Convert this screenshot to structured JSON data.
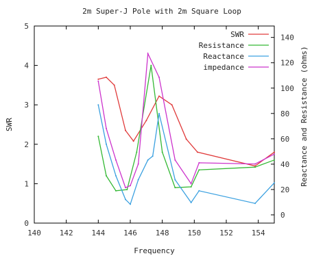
{
  "chart_data": {
    "type": "line",
    "title": "2m Super-J Pole with 2m Square Loop",
    "xlabel": "Frequency",
    "ylabel": "SWR",
    "y2label": "Reactance and Resistance (ohms)",
    "xlim": [
      140,
      155
    ],
    "ylim": [
      0,
      5
    ],
    "y2lim": [
      -6.5,
      149
    ],
    "xticks": [
      "140",
      "142",
      "144",
      "146",
      "148",
      "150",
      "152",
      "154"
    ],
    "yticks": [
      "0",
      "1",
      "2",
      "3",
      "4",
      "5"
    ],
    "y2ticks": [
      "0",
      "20",
      "40",
      "60",
      "80",
      "100",
      "120",
      "140"
    ],
    "legend_position": "top-right",
    "grid": false,
    "series": [
      {
        "name": "SWR",
        "axis": "left",
        "color": "#e03a3a",
        "x": [
          144.0,
          144.5,
          145.0,
          145.7,
          146.2,
          147.0,
          147.8,
          148.6,
          149.5,
          150.2,
          153.8,
          155.0
        ],
        "y": [
          3.65,
          3.7,
          3.5,
          2.35,
          2.08,
          2.6,
          3.22,
          3.0,
          2.13,
          1.8,
          1.45,
          1.8
        ]
      },
      {
        "name": "Resistance",
        "axis": "left",
        "color": "#33b833",
        "x": [
          144.0,
          144.5,
          145.1,
          145.8,
          146.4,
          147.3,
          148.0,
          148.8,
          149.8,
          150.3,
          153.8,
          155.0
        ],
        "y": [
          2.2,
          1.2,
          0.82,
          0.85,
          1.8,
          4.0,
          1.8,
          0.9,
          0.92,
          1.35,
          1.42,
          1.6
        ]
      },
      {
        "name": "Reactance",
        "axis": "left",
        "color": "#3aa0e0",
        "x": [
          144.0,
          144.5,
          145.1,
          145.7,
          146.0,
          146.5,
          147.1,
          147.4,
          147.8,
          148.8,
          149.8,
          150.3,
          153.8,
          155.0
        ],
        "y": [
          3.0,
          2.0,
          1.2,
          0.6,
          0.48,
          1.1,
          1.6,
          1.7,
          2.78,
          1.1,
          0.52,
          0.82,
          0.5,
          1.02
        ]
      },
      {
        "name": "impedance",
        "axis": "left",
        "color": "#cc33cc",
        "x": [
          144.0,
          144.5,
          145.1,
          145.7,
          146.0,
          146.5,
          147.1,
          147.8,
          148.8,
          149.8,
          150.3,
          153.8,
          155.0
        ],
        "y": [
          3.6,
          2.4,
          1.6,
          0.9,
          0.95,
          1.5,
          4.3,
          3.7,
          1.6,
          1.0,
          1.53,
          1.5,
          1.75
        ]
      }
    ]
  }
}
